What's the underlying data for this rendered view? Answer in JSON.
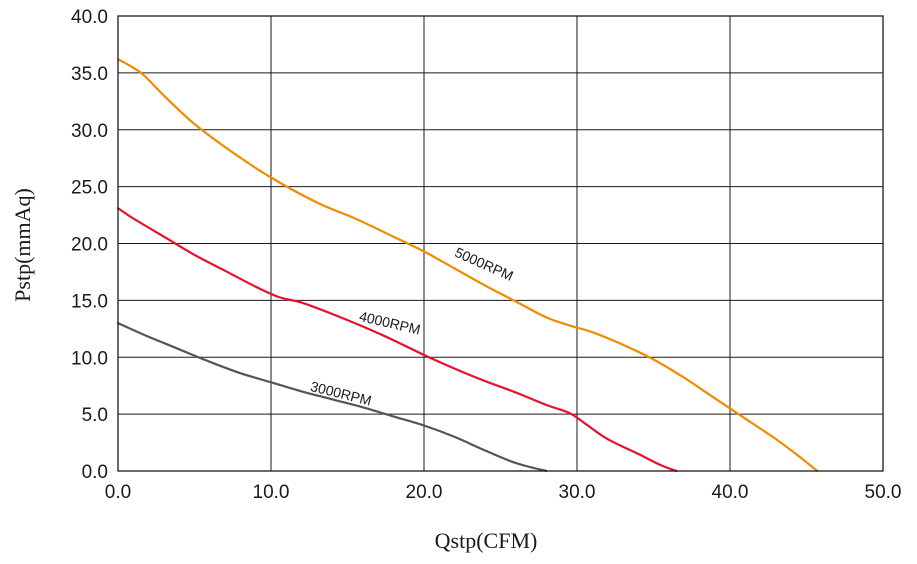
{
  "chart_data": {
    "type": "line",
    "title": "",
    "xlabel": "Qstp(CFM)",
    "ylabel": "Pstp(mmAq)",
    "xlim": [
      0,
      50
    ],
    "ylim": [
      0,
      40
    ],
    "x_ticks": [
      "0.0",
      "10.0",
      "20.0",
      "30.0",
      "40.0",
      "50.0"
    ],
    "y_ticks": [
      "0.0",
      "5.0",
      "10.0",
      "15.0",
      "20.0",
      "25.0",
      "30.0",
      "35.0",
      "40.0"
    ],
    "grid": true,
    "series": [
      {
        "name": "5000RPM",
        "color": "#f08c00",
        "points": [
          [
            0,
            36.2
          ],
          [
            1.5,
            35
          ],
          [
            3,
            33
          ],
          [
            5,
            30.5
          ],
          [
            7.5,
            28
          ],
          [
            10,
            25.8
          ],
          [
            13,
            23.6
          ],
          [
            15.5,
            22.2
          ],
          [
            18,
            20.6
          ],
          [
            20,
            19.3
          ],
          [
            22,
            17.8
          ],
          [
            24,
            16.3
          ],
          [
            26,
            14.9
          ],
          [
            28,
            13.5
          ],
          [
            29.5,
            12.8
          ],
          [
            31,
            12.2
          ],
          [
            33,
            11.1
          ],
          [
            35,
            9.8
          ],
          [
            37,
            8.2
          ],
          [
            39,
            6.4
          ],
          [
            41,
            4.6
          ],
          [
            43,
            2.8
          ],
          [
            44.5,
            1.3
          ],
          [
            45.7,
            0
          ]
        ]
      },
      {
        "name": "4000RPM",
        "color": "#e8112d",
        "points": [
          [
            0,
            23.1
          ],
          [
            1,
            22.2
          ],
          [
            3,
            20.6
          ],
          [
            5,
            19
          ],
          [
            7,
            17.6
          ],
          [
            9,
            16.2
          ],
          [
            10.5,
            15.3
          ],
          [
            12,
            14.8
          ],
          [
            14,
            13.8
          ],
          [
            16,
            12.7
          ],
          [
            18,
            11.5
          ],
          [
            20,
            10.2
          ],
          [
            22,
            9
          ],
          [
            24,
            7.9
          ],
          [
            26,
            6.9
          ],
          [
            28,
            5.8
          ],
          [
            29.5,
            5.1
          ],
          [
            30.5,
            4.2
          ],
          [
            32,
            2.8
          ],
          [
            34,
            1.5
          ],
          [
            35.5,
            0.5
          ],
          [
            36.5,
            0
          ]
        ]
      },
      {
        "name": "3000RPM",
        "color": "#555555",
        "points": [
          [
            0,
            13
          ],
          [
            2,
            11.8
          ],
          [
            4,
            10.7
          ],
          [
            6,
            9.6
          ],
          [
            8,
            8.6
          ],
          [
            10,
            7.8
          ],
          [
            12,
            7
          ],
          [
            14,
            6.3
          ],
          [
            16,
            5.6
          ],
          [
            18,
            4.8
          ],
          [
            20,
            4
          ],
          [
            22,
            3
          ],
          [
            24,
            1.8
          ],
          [
            26,
            0.7
          ],
          [
            28,
            0
          ]
        ]
      }
    ]
  }
}
